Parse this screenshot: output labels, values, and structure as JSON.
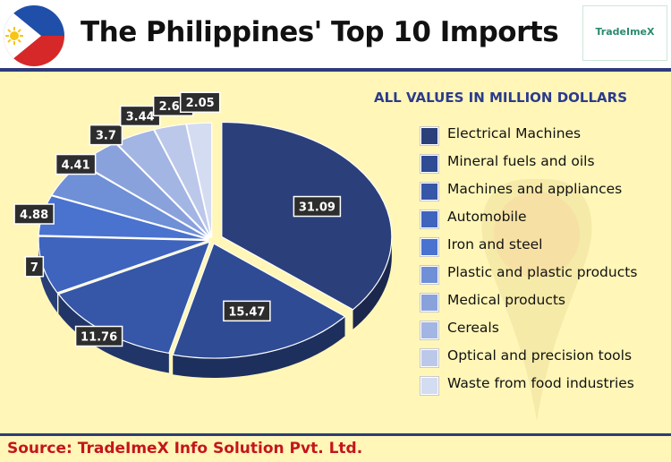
{
  "header": {
    "title": "The Philippines' Top 10 Imports",
    "logo_text": "TradeImeX",
    "flag_colors": {
      "blue": "#1f4fa8",
      "red": "#d62828",
      "white": "#ffffff",
      "sun": "#f6c516"
    }
  },
  "units_note": "ALL VALUES IN MILLION DOLLARS",
  "source": "Source: TradeImeX Info Solution Pvt. Ltd.",
  "chart_data": {
    "type": "pie",
    "title": "The Philippines' Top 10 Imports",
    "unit": "ALL VALUES IN MILLION DOLLARS",
    "legend_position": "right",
    "style": "3d-exploded",
    "categories": [
      "Electrical Machines",
      "Mineral fuels and oils",
      "Machines and appliances",
      "Automobile",
      "Iron and steel",
      "Plastic and plastic products",
      "Medical products",
      "Cereals",
      "Optical and precision tools",
      "Waste from food industries"
    ],
    "values": [
      31.09,
      15.47,
      11.76,
      7,
      4.88,
      4.41,
      3.7,
      3.44,
      2.64,
      2.05
    ],
    "labels": [
      "31.09",
      "15.47",
      "11.76",
      "7",
      "4.88",
      "4.41",
      "3.7",
      "3.44",
      "2.64",
      "2.05"
    ],
    "colors": [
      "#2b3f7a",
      "#2e4b94",
      "#3656a8",
      "#3f64be",
      "#4a72cf",
      "#6f8fd6",
      "#8aa2dc",
      "#a3b5e3",
      "#bcc8ea",
      "#d4dcf2"
    ]
  }
}
